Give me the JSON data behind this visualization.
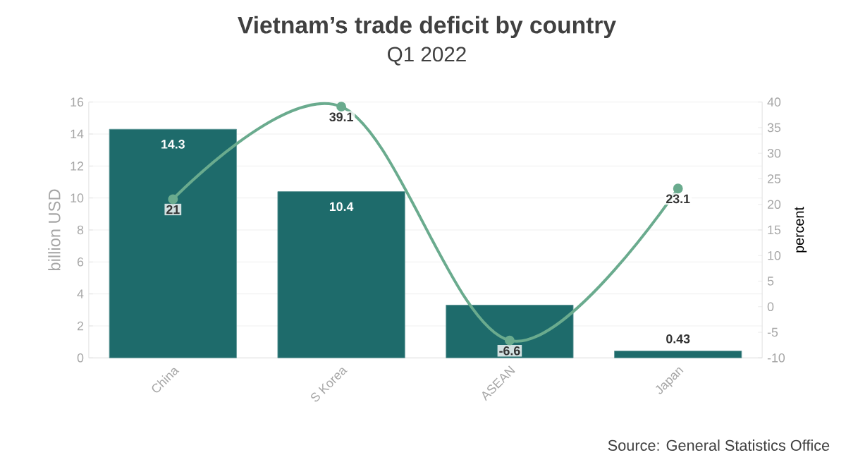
{
  "chart_data": {
    "type": "bar",
    "title": "Vietnam’s trade deficit by country",
    "subtitle": "Q1 2022",
    "ylabel": "billion USD",
    "y2label": "percent",
    "categories": [
      "China",
      "S Korea",
      "ASEAN",
      "Japan"
    ],
    "series": [
      {
        "color": "#1e6b6b",
        "values": [
          14.3,
          10.4,
          3.3,
          0.43
        ],
        "value_labels": [
          "14.3",
          "10.4",
          null,
          "0.43"
        ]
      },
      {
        "type": "line",
        "axis": "y2",
        "color": "#6aab8e",
        "values": [
          21,
          39.1,
          -6.6,
          23.1
        ],
        "value_labels": [
          "21",
          "39.1",
          "-6.6",
          "23.1"
        ]
      }
    ],
    "ylim": [
      0,
      16
    ],
    "yticks": [
      0,
      2,
      4,
      6,
      8,
      10,
      12,
      14,
      16
    ],
    "y2lim": [
      -10,
      40
    ],
    "y2ticks": [
      -10,
      -5,
      0,
      5,
      10,
      15,
      20,
      25,
      30,
      35,
      40
    ],
    "grid": "y",
    "marker": "circle",
    "annotations": [
      "Source: General Statistics Office"
    ]
  }
}
